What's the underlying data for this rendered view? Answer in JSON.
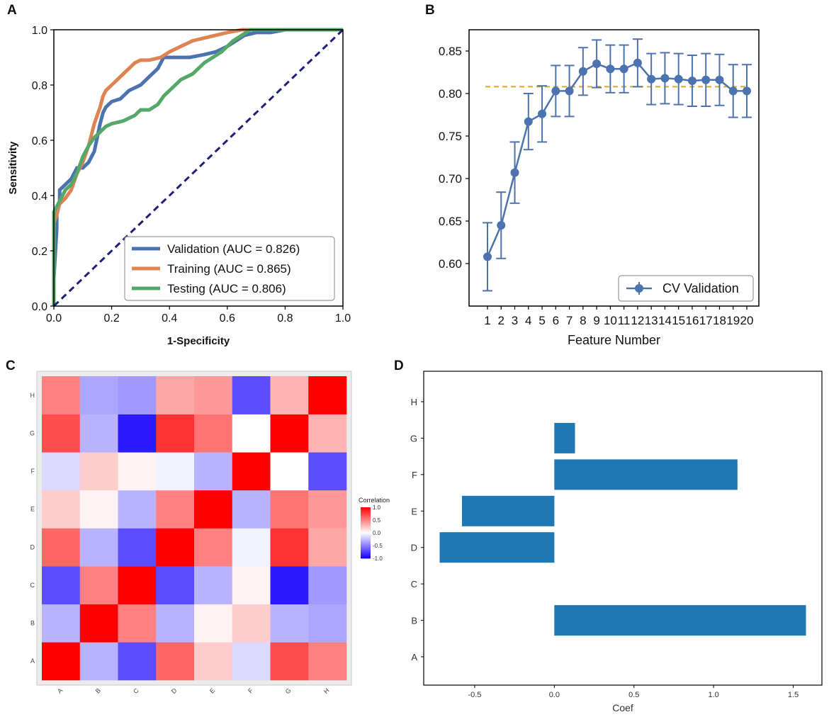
{
  "chart_data": [
    {
      "panel": "A",
      "type": "line",
      "xlabel": "1-Specificity",
      "ylabel": "Sensitivity",
      "xlim": [
        0.0,
        1.0
      ],
      "ylim": [
        0.0,
        1.0
      ],
      "xticks": [
        "0.0",
        "0.2",
        "0.4",
        "0.6",
        "0.8",
        "1.0"
      ],
      "yticks": [
        "0.0",
        "0.2",
        "0.4",
        "0.6",
        "0.8",
        "1.0"
      ],
      "legend_position": "bottom-right",
      "series": [
        {
          "name": "Validation (AUC = 0.826)",
          "color": "#4c72b0",
          "x": [
            0.0,
            0.0,
            0.01,
            0.01,
            0.02,
            0.02,
            0.04,
            0.06,
            0.08,
            0.1,
            0.12,
            0.14,
            0.16,
            0.17,
            0.18,
            0.2,
            0.23,
            0.26,
            0.3,
            0.33,
            0.36,
            0.38,
            0.4,
            0.43,
            0.47,
            0.52,
            0.56,
            0.6,
            0.63,
            0.66,
            0.7,
            0.75,
            0.8
          ],
          "y": [
            0.0,
            0.1,
            0.28,
            0.35,
            0.38,
            0.42,
            0.44,
            0.46,
            0.5,
            0.5,
            0.52,
            0.56,
            0.66,
            0.7,
            0.72,
            0.74,
            0.75,
            0.78,
            0.8,
            0.83,
            0.86,
            0.9,
            0.9,
            0.9,
            0.9,
            0.91,
            0.92,
            0.94,
            0.96,
            0.98,
            0.99,
            0.99,
            1.0
          ]
        },
        {
          "name": "Training (AUC = 0.865)",
          "color": "#dd8452",
          "x": [
            0.0,
            0.0,
            0.01,
            0.02,
            0.04,
            0.06,
            0.08,
            0.1,
            0.12,
            0.14,
            0.16,
            0.17,
            0.18,
            0.2,
            0.22,
            0.24,
            0.26,
            0.28,
            0.3,
            0.33,
            0.37,
            0.4,
            0.44,
            0.48,
            0.52,
            0.56,
            0.6,
            0.65,
            0.7,
            1.0
          ],
          "y": [
            0.0,
            0.3,
            0.33,
            0.37,
            0.39,
            0.42,
            0.48,
            0.52,
            0.58,
            0.66,
            0.72,
            0.76,
            0.78,
            0.8,
            0.82,
            0.84,
            0.86,
            0.88,
            0.89,
            0.89,
            0.9,
            0.92,
            0.94,
            0.96,
            0.97,
            0.98,
            0.99,
            1.0,
            1.0,
            1.0
          ]
        },
        {
          "name": "Testing (AUC = 0.806)",
          "color": "#55a868",
          "x": [
            0.0,
            0.0,
            0.01,
            0.02,
            0.04,
            0.06,
            0.08,
            0.1,
            0.12,
            0.14,
            0.16,
            0.18,
            0.2,
            0.24,
            0.28,
            0.3,
            0.33,
            0.36,
            0.38,
            0.4,
            0.42,
            0.44,
            0.48,
            0.52,
            0.55,
            0.58,
            0.6,
            0.62,
            0.65,
            0.68,
            1.0
          ],
          "y": [
            0.0,
            0.34,
            0.36,
            0.38,
            0.42,
            0.44,
            0.48,
            0.54,
            0.58,
            0.61,
            0.63,
            0.65,
            0.66,
            0.67,
            0.69,
            0.71,
            0.71,
            0.73,
            0.76,
            0.78,
            0.8,
            0.82,
            0.84,
            0.88,
            0.9,
            0.92,
            0.94,
            0.96,
            0.98,
            1.0,
            1.0
          ]
        },
        {
          "name": "chance",
          "color": "#1f1f7a",
          "x": [
            0.0,
            1.0
          ],
          "y": [
            0.0,
            1.0
          ],
          "dashed": true
        }
      ]
    },
    {
      "panel": "B",
      "type": "line",
      "xlabel": "Feature Number",
      "ylabel": "",
      "categories": [
        "1",
        "2",
        "3",
        "4",
        "5",
        "6",
        "7",
        "8",
        "9",
        "10",
        "11",
        "12",
        "13",
        "14",
        "15",
        "16",
        "17",
        "18",
        "19",
        "20"
      ],
      "ylim": [
        0.55,
        0.875
      ],
      "yticks": [
        "0.60",
        "0.65",
        "0.70",
        "0.75",
        "0.80",
        "0.85"
      ],
      "legend_position": "bottom-right",
      "series": [
        {
          "name": "CV Validation",
          "color": "#4c72b0",
          "values": [
            0.608,
            0.645,
            0.707,
            0.767,
            0.776,
            0.803,
            0.803,
            0.826,
            0.835,
            0.829,
            0.829,
            0.836,
            0.817,
            0.818,
            0.817,
            0.815,
            0.816,
            0.816,
            0.803,
            0.803
          ],
          "errors": [
            0.04,
            0.039,
            0.036,
            0.033,
            0.033,
            0.03,
            0.03,
            0.028,
            0.028,
            0.028,
            0.028,
            0.028,
            0.03,
            0.03,
            0.03,
            0.03,
            0.031,
            0.03,
            0.031,
            0.031
          ]
        }
      ],
      "reference_line": {
        "value": 0.808,
        "color": "#e0a81c",
        "dashed": true
      }
    },
    {
      "panel": "C",
      "type": "heatmap",
      "xlabel": "",
      "ylabel": "",
      "x_categories": [
        "A",
        "B",
        "C",
        "D",
        "E",
        "F",
        "G",
        "H"
      ],
      "y_categories": [
        "A",
        "B",
        "C",
        "D",
        "E",
        "F",
        "G",
        "H"
      ],
      "colorbar_title": "Correlation",
      "colorbar_ticks": [
        "1.0",
        "0.5",
        "0.0",
        "-0.5",
        "-1.0"
      ],
      "colorbar_range": [
        -1.0,
        1.0
      ],
      "values": [
        [
          1.0,
          -0.3,
          -0.7,
          0.6,
          0.2,
          -0.15,
          0.7,
          0.5
        ],
        [
          -0.3,
          1.0,
          0.5,
          -0.3,
          0.05,
          0.2,
          -0.3,
          -0.35
        ],
        [
          -0.7,
          0.5,
          1.0,
          -0.7,
          -0.3,
          0.05,
          -0.9,
          -0.4
        ],
        [
          0.6,
          -0.3,
          -0.7,
          1.0,
          0.5,
          -0.05,
          0.8,
          0.35
        ],
        [
          0.2,
          0.05,
          -0.3,
          0.5,
          1.0,
          -0.3,
          0.55,
          0.4
        ],
        [
          -0.15,
          0.2,
          0.05,
          -0.05,
          -0.3,
          1.0,
          0.0,
          -0.7
        ],
        [
          0.7,
          -0.3,
          -0.9,
          0.8,
          0.55,
          0.0,
          1.0,
          0.3
        ],
        [
          0.5,
          -0.35,
          -0.4,
          0.35,
          0.4,
          -0.7,
          0.3,
          1.0
        ]
      ]
    },
    {
      "panel": "D",
      "type": "bar",
      "orientation": "horizontal",
      "xlabel": "Coef",
      "ylabel": "",
      "categories": [
        "A",
        "B",
        "C",
        "D",
        "E",
        "F",
        "G",
        "H"
      ],
      "values": [
        0.0,
        1.58,
        0.0,
        -0.72,
        -0.58,
        1.15,
        0.13,
        0.0
      ],
      "xlim": [
        -0.82,
        1.68
      ],
      "xticks": [
        "-0.5",
        "0.0",
        "0.5",
        "1.0",
        "1.5"
      ],
      "color": "#1f77b4"
    }
  ]
}
